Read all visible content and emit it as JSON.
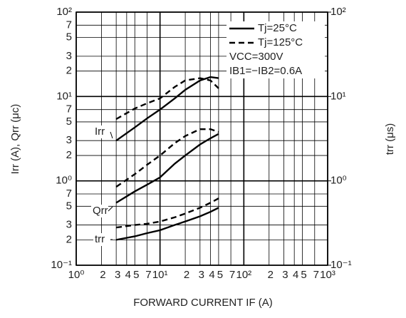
{
  "chart_data": {
    "type": "line",
    "xlabel": "FORWARD CURRENT   IF (A)",
    "ylabel": "Irr (A), Qrr (μc)",
    "y2label": "trr (μs)",
    "log_x": true,
    "log_y": true,
    "grid": true,
    "xlim": [
      1,
      1000
    ],
    "ylim": [
      0.1,
      100
    ],
    "y2lim": [
      0.1,
      100
    ],
    "xticks": [
      {
        "value": 1,
        "label": "10⁰"
      },
      2,
      3,
      4,
      5,
      7,
      {
        "value": 10,
        "label": "10¹"
      },
      {
        "value": 20,
        "label": "2"
      },
      {
        "value": 30,
        "label": "3"
      },
      {
        "value": 40,
        "label": "4"
      },
      {
        "value": 50,
        "label": "5"
      },
      {
        "value": 70,
        "label": "7"
      },
      {
        "value": 100,
        "label": "10²"
      },
      {
        "value": 200,
        "label": "2"
      },
      {
        "value": 300,
        "label": "3"
      },
      {
        "value": 400,
        "label": "4"
      },
      {
        "value": 500,
        "label": "5"
      },
      {
        "value": 700,
        "label": "7"
      },
      {
        "value": 1000,
        "label": "10³"
      }
    ],
    "yticks": [
      {
        "value": 100,
        "label": "10²"
      },
      {
        "value": 70,
        "label": "7"
      },
      {
        "value": 50,
        "label": "5"
      },
      {
        "value": 30,
        "label": "3"
      },
      {
        "value": 20,
        "label": "2"
      },
      {
        "value": 10,
        "label": "10¹"
      },
      7,
      5,
      3,
      2,
      {
        "value": 1,
        "label": "10⁰"
      },
      {
        "value": 0.7,
        "label": "7"
      },
      {
        "value": 0.5,
        "label": "5"
      },
      {
        "value": 0.3,
        "label": "3"
      },
      {
        "value": 0.2,
        "label": "2"
      },
      {
        "value": 0.1,
        "label": "10⁻¹"
      }
    ],
    "y2ticks": [
      {
        "value": 100,
        "label": "10²"
      },
      {
        "value": 10,
        "label": "10¹"
      },
      {
        "value": 1,
        "label": "10⁰"
      },
      {
        "value": 0.1,
        "label": "10⁻¹"
      }
    ],
    "legend": [
      {
        "label": "Tj=25°C",
        "dash": "solid"
      },
      {
        "label": "Tj=125°C",
        "dash": "dashed"
      }
    ],
    "annotations": [
      "VCC=300V",
      "IB1=−IB2=0.6A"
    ],
    "color": "#000000",
    "x": [
      3,
      5,
      7,
      10,
      15,
      20,
      30,
      40,
      50
    ],
    "series": [
      {
        "name": "Irr",
        "dash": "solid",
        "values": [
          3.0,
          4.3,
          5.5,
          7.0,
          9.5,
          12,
          15.5,
          17,
          16.5
        ]
      },
      {
        "name": "Irr",
        "dash": "dashed",
        "values": [
          5.4,
          7.2,
          8.3,
          9.5,
          13,
          15.5,
          16.5,
          15.5,
          12.5
        ]
      },
      {
        "name": "Qrr",
        "dash": "solid",
        "values": [
          0.55,
          0.75,
          0.9,
          1.1,
          1.6,
          2.0,
          2.7,
          3.2,
          3.6
        ]
      },
      {
        "name": "Qrr",
        "dash": "dashed",
        "values": [
          0.85,
          1.2,
          1.55,
          2.0,
          2.8,
          3.4,
          4.1,
          4.1,
          3.8
        ]
      },
      {
        "name": "trr",
        "dash": "solid",
        "axis": "y2",
        "values": [
          0.2,
          0.22,
          0.24,
          0.26,
          0.3,
          0.33,
          0.38,
          0.43,
          0.48
        ]
      },
      {
        "name": "trr",
        "dash": "dashed",
        "axis": "y2",
        "values": [
          0.28,
          0.3,
          0.31,
          0.33,
          0.37,
          0.41,
          0.48,
          0.55,
          0.62
        ]
      }
    ]
  }
}
